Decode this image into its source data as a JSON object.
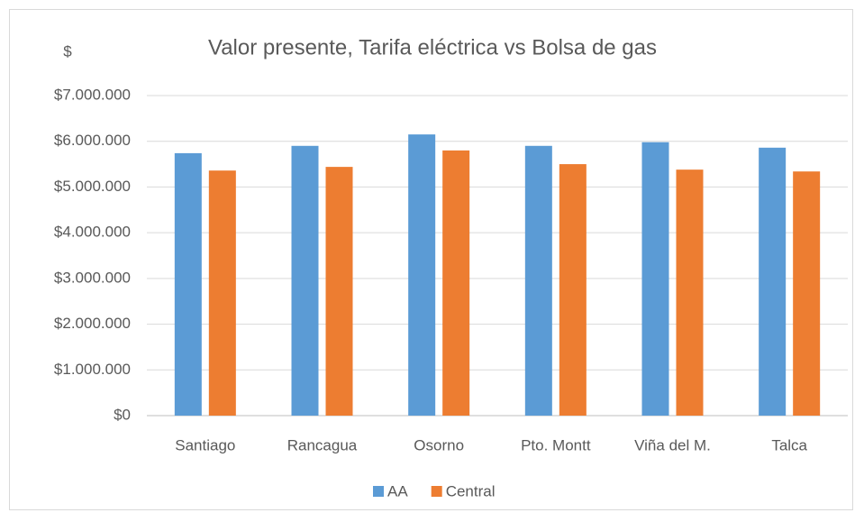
{
  "chart_data": {
    "type": "bar",
    "title": "Valor presente, Tarifa eléctrica vs Bolsa de gas",
    "y_label": "$",
    "categories": [
      "Santiago",
      "Rancagua",
      "Osorno",
      "Pto. Montt",
      "Viña del M.",
      "Talca"
    ],
    "series": [
      {
        "name": "AA",
        "color": "#5b9bd5",
        "values": [
          5740000,
          5900000,
          6150000,
          5900000,
          5980000,
          5860000
        ]
      },
      {
        "name": "Central",
        "color": "#ed7d31",
        "values": [
          5360000,
          5440000,
          5800000,
          5500000,
          5380000,
          5340000
        ]
      }
    ],
    "ylim": [
      0,
      7000000
    ],
    "yticks": [
      {
        "value": 0,
        "label": "$0"
      },
      {
        "value": 1000000,
        "label": "$1.000.000"
      },
      {
        "value": 2000000,
        "label": "$2.000.000"
      },
      {
        "value": 3000000,
        "label": "$3.000.000"
      },
      {
        "value": 4000000,
        "label": "$4.000.000"
      },
      {
        "value": 5000000,
        "label": "$5.000.000"
      },
      {
        "value": 6000000,
        "label": "$6.000.000"
      },
      {
        "value": 7000000,
        "label": "$7.000.000"
      }
    ],
    "grid": true,
    "legend": "bottom"
  }
}
